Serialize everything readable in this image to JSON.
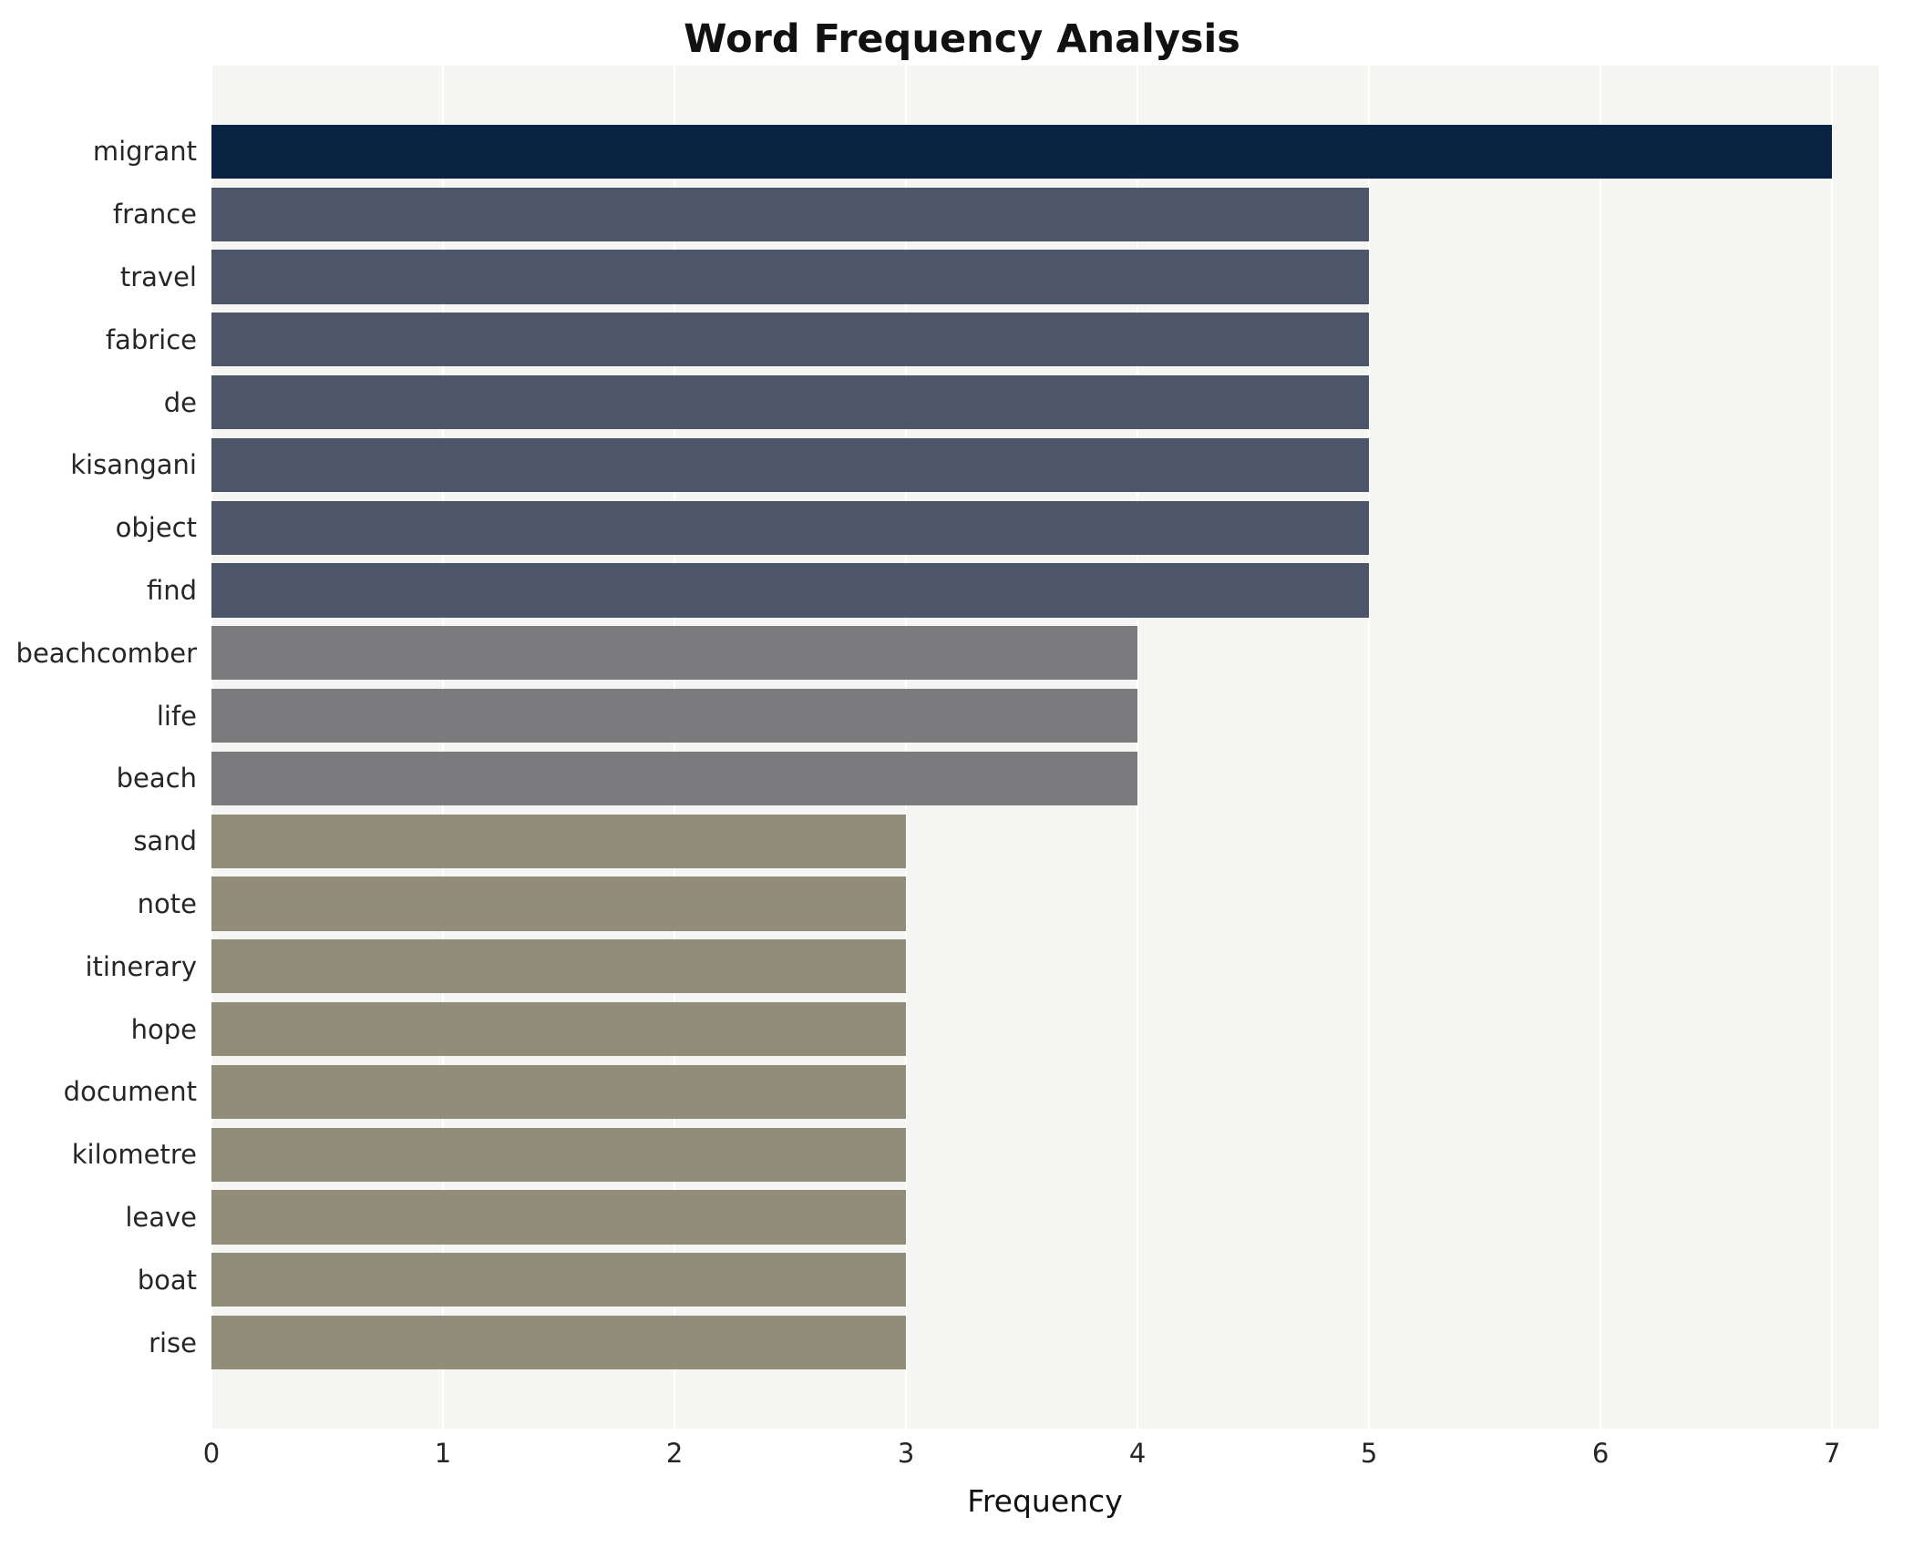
{
  "title": "Word Frequency Analysis",
  "chart_data": {
    "type": "bar",
    "orientation": "horizontal",
    "title": "Word Frequency Analysis",
    "xlabel": "Frequency",
    "ylabel": "",
    "xlim": [
      0,
      7.2
    ],
    "xticks": [
      0,
      1,
      2,
      3,
      4,
      5,
      6,
      7
    ],
    "grid": true,
    "legend_position": "none",
    "plot_background": "#f5f5f3",
    "grid_color": "#ffffff",
    "categories": [
      "migrant",
      "france",
      "travel",
      "fabrice",
      "de",
      "kisangani",
      "object",
      "find",
      "beachcomber",
      "life",
      "beach",
      "sand",
      "note",
      "itinerary",
      "hope",
      "document",
      "kilometre",
      "leave",
      "boat",
      "rise"
    ],
    "values": [
      7,
      5,
      5,
      5,
      5,
      5,
      5,
      5,
      4,
      4,
      4,
      3,
      3,
      3,
      3,
      3,
      3,
      3,
      3,
      3
    ],
    "bar_colors": [
      "#0a2342",
      "#4d5568",
      "#4d5568",
      "#4d5568",
      "#4d5568",
      "#4d5568",
      "#4d5568",
      "#4d5568",
      "#7b7b7e",
      "#7b7b7e",
      "#7b7b7e",
      "#928d79",
      "#928d79",
      "#928d79",
      "#928d79",
      "#928d79",
      "#928d79",
      "#928d79",
      "#928d79",
      "#928d79"
    ]
  }
}
